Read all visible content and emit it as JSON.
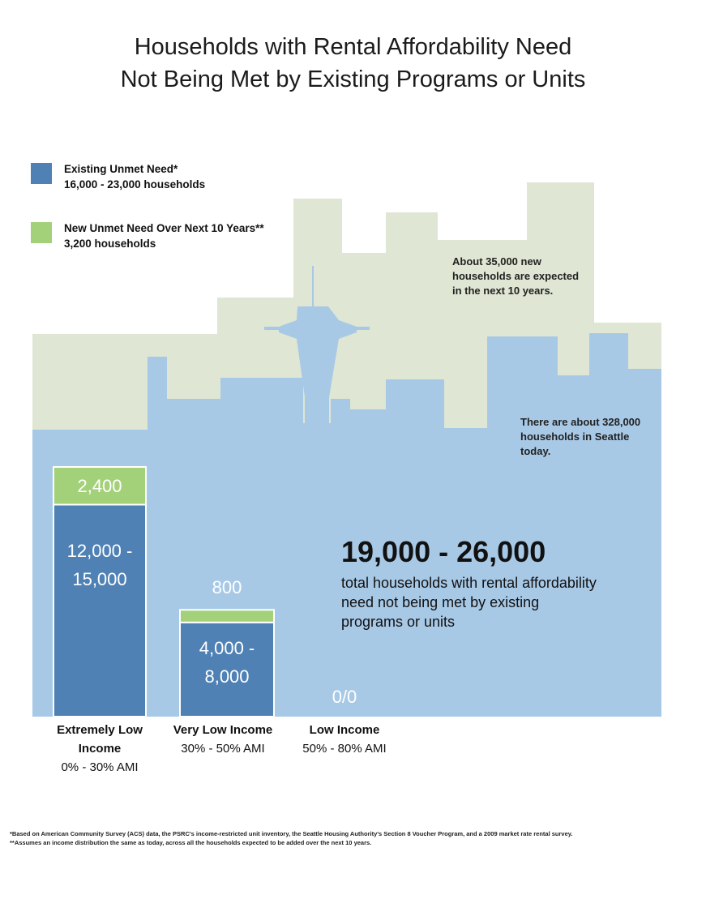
{
  "title": {
    "line1": "Households with Rental Affordability Need",
    "line2": "Not Being Met by Existing Programs or Units"
  },
  "legend": [
    {
      "label": "Existing Unmet Need*",
      "value": "16,000 - 23,000 households",
      "color": "#4f81b5"
    },
    {
      "label": "New Unmet Need Over Next 10 Years**",
      "value": "3,200 households",
      "color": "#a3d179"
    }
  ],
  "notes": {
    "new_households": "About 35,000 new households are expected in the next 10 years.",
    "current_households": "There are about 328,000 households in Seattle today."
  },
  "colors": {
    "existing": "#4f81b5",
    "new": "#a3d179",
    "background_today": "#a8c9e6",
    "background_future": "#dfe6d3",
    "bar_outline": "#ffffff"
  },
  "chart_data": {
    "type": "bar",
    "stacked": true,
    "categories": [
      "Extremely Low Income",
      "Very Low Income",
      "Low Income"
    ],
    "category_ranges": [
      "0% - 30% AMI",
      "30% - 50% AMI",
      "50% - 80% AMI"
    ],
    "series": [
      {
        "name": "Existing Unmet Need*",
        "values": [
          13500,
          6000,
          0
        ],
        "labels": [
          "12,000 - 15,000",
          "4,000 - 8,000",
          "0"
        ]
      },
      {
        "name": "New Unmet Need Over Next 10 Years**",
        "values": [
          2400,
          800,
          0
        ],
        "labels": [
          "2,400",
          "800",
          "0"
        ]
      }
    ],
    "zero_label": "0/0",
    "total_label": "19,000 - 26,000",
    "total_description": "total households with rental affordability need not being met by existing programs or units"
  },
  "footnotes": [
    "*Based on American Community Survey (ACS) data, the PSRC's income-restricted unit inventory, the Seattle Housing Authority's Section 8 Voucher Program, and a 2009 market rate rental survey.",
    "**Assumes an income distribution the same as today, across all the households expected to be added over the next 10 years."
  ]
}
